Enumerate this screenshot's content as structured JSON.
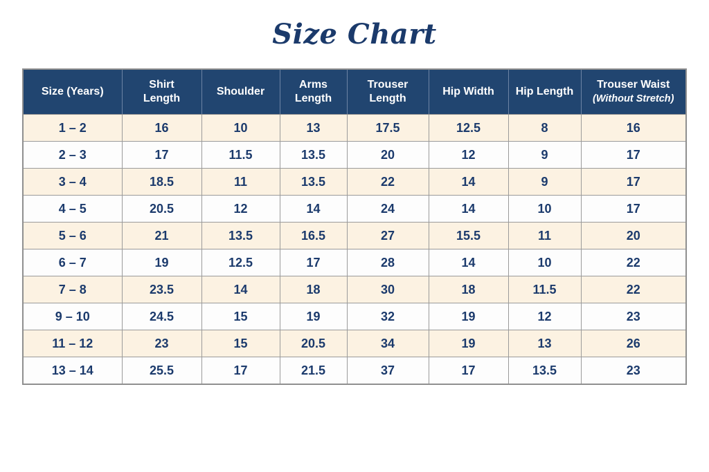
{
  "title": "Size Chart",
  "colors": {
    "header_bg": "#214570",
    "header_text": "#ffffff",
    "text_navy": "#1b3a6c",
    "row_cream": "#fcf2e2",
    "row_white": "#fdfdfd",
    "border_gray": "#9a9a9a",
    "title_navy": "#1b3a6b"
  },
  "chart_data": {
    "type": "table",
    "title": "Size Chart",
    "columns": [
      {
        "main": "Size (Years)",
        "sub": ""
      },
      {
        "main": "Shirt\nLength",
        "sub": ""
      },
      {
        "main": "Shoulder",
        "sub": ""
      },
      {
        "main": "Arms\nLength",
        "sub": ""
      },
      {
        "main": "Trouser\nLength",
        "sub": ""
      },
      {
        "main": "Hip Width",
        "sub": ""
      },
      {
        "main": "Hip Length",
        "sub": ""
      },
      {
        "main": "Trouser Waist",
        "sub": "(Without Stretch)"
      }
    ],
    "rows": [
      [
        "1 – 2",
        "16",
        "10",
        "13",
        "17.5",
        "12.5",
        "8",
        "16"
      ],
      [
        "2 – 3",
        "17",
        "11.5",
        "13.5",
        "20",
        "12",
        "9",
        "17"
      ],
      [
        "3 – 4",
        "18.5",
        "11",
        "13.5",
        "22",
        "14",
        "9",
        "17"
      ],
      [
        "4 – 5",
        "20.5",
        "12",
        "14",
        "24",
        "14",
        "10",
        "17"
      ],
      [
        "5 – 6",
        "21",
        "13.5",
        "16.5",
        "27",
        "15.5",
        "11",
        "20"
      ],
      [
        "6 – 7",
        "19",
        "12.5",
        "17",
        "28",
        "14",
        "10",
        "22"
      ],
      [
        "7 – 8",
        "23.5",
        "14",
        "18",
        "30",
        "18",
        "11.5",
        "22"
      ],
      [
        "9 – 10",
        "24.5",
        "15",
        "19",
        "32",
        "19",
        "12",
        "23"
      ],
      [
        "11 – 12",
        "23",
        "15",
        "20.5",
        "34",
        "19",
        "13",
        "26"
      ],
      [
        "13 – 14",
        "25.5",
        "17",
        "21.5",
        "37",
        "17",
        "13.5",
        "23"
      ]
    ]
  }
}
